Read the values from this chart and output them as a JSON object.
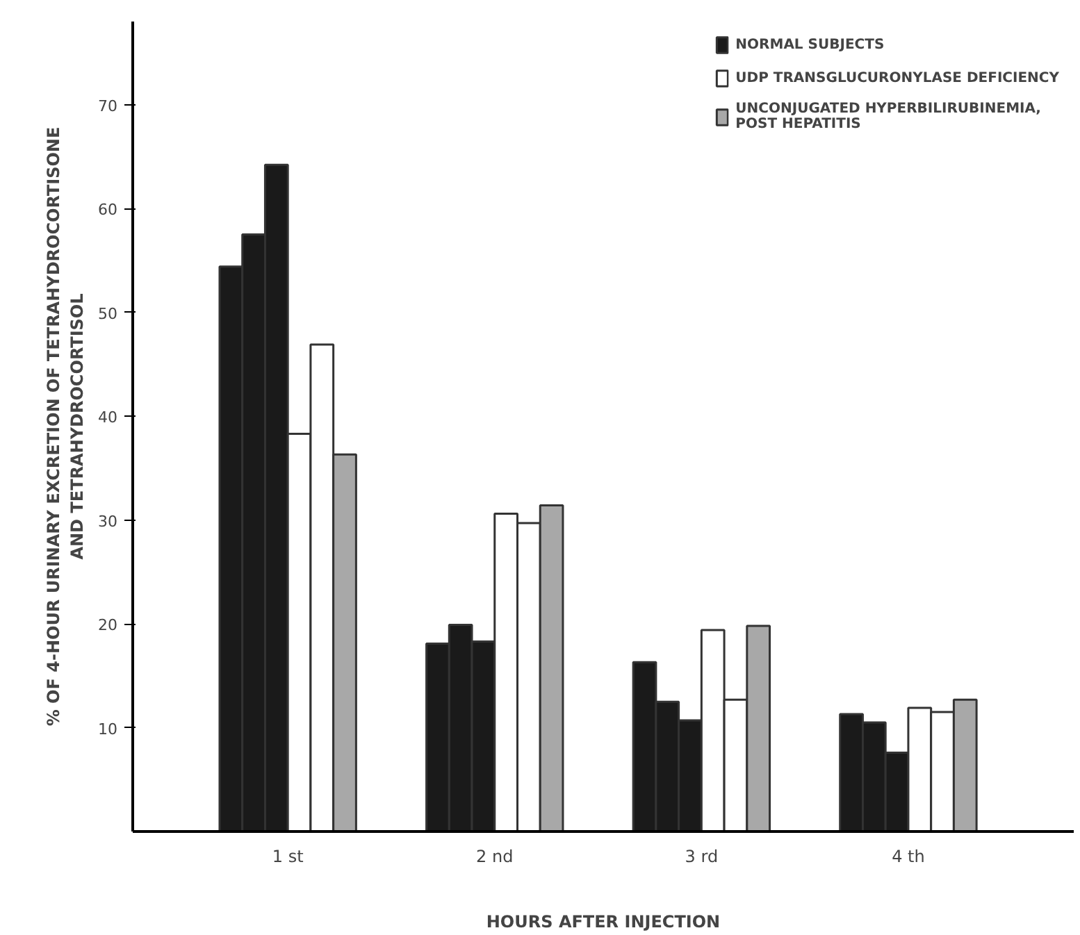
{
  "chart_data": {
    "type": "bar",
    "xlabel": "HOURS AFTER INJECTION",
    "ylabel": "% OF 4-HOUR URINARY EXCRETION OF TETRAHYDROCORTISONE\nAND TETRAHYDROCORTISOL",
    "categories": [
      "1 st",
      "2 nd",
      "3 rd",
      "4 th"
    ],
    "series": [
      {
        "name": "NORMAL SUBJECTS",
        "color": "#1a1a1a",
        "values": [
          54.4,
          18.1,
          16.3,
          11.3
        ]
      },
      {
        "color": "#1a1a1a",
        "values": [
          57.5,
          19.9,
          12.5,
          10.5
        ]
      },
      {
        "color": "#1a1a1a",
        "values": [
          64.2,
          18.3,
          10.7,
          7.6
        ]
      },
      {
        "name": "UDP TRANSGLUCURONYLASE DEFICIENCY",
        "color": "#ffffff",
        "values": [
          38.3,
          30.6,
          19.4,
          11.9
        ]
      },
      {
        "color": "#ffffff",
        "values": [
          46.9,
          29.7,
          12.7,
          11.5
        ]
      },
      {
        "name": "UNCONJUGATED HYPERBILIRUBINEMIA,\nPOST HEPATITIS",
        "color": "#a8a8a8",
        "values": [
          36.3,
          31.4,
          19.8,
          12.7
        ]
      }
    ],
    "ylim": [
      0,
      78
    ],
    "yticks": [
      10,
      20,
      30,
      40,
      50,
      60,
      70
    ],
    "grid": false,
    "legend": "top right"
  }
}
